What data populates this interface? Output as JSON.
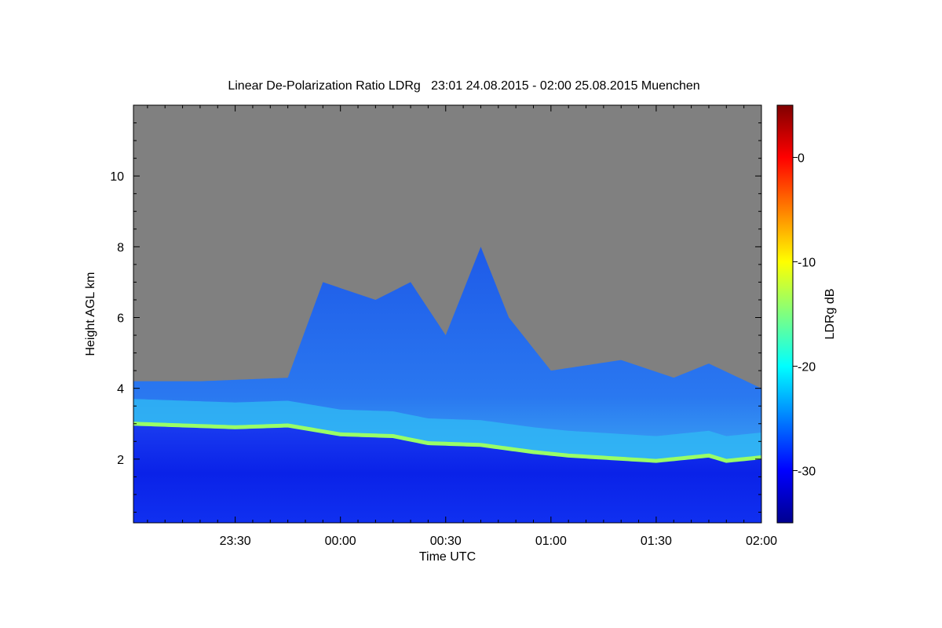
{
  "chart_data": {
    "type": "heatmap",
    "title": "Linear De-Polarization Ratio LDRg   23:01 24.08.2015 - 02:00 25.08.2015 Muenchen",
    "xlabel": "Time UTC",
    "ylabel": "Height AGL km",
    "x_range": [
      "23:01",
      "02:00"
    ],
    "y_range": [
      0.2,
      12.0
    ],
    "x_ticks": [
      "23:30",
      "00:00",
      "00:30",
      "01:00",
      "01:30",
      "02:00"
    ],
    "y_ticks": [
      2,
      4,
      6,
      8,
      10
    ],
    "colorbar": {
      "label": "LDRg dB",
      "range": [
        -35,
        5
      ],
      "ticks": [
        0,
        -10,
        -20,
        -30
      ],
      "colormap": "jet"
    },
    "no_signal_color": "#808080",
    "features": {
      "low_level_ldr_db": -30,
      "melting_layer_ldr_db": -14,
      "ice_cloud_ldr_db": -26,
      "melting_layer_height_km": [
        [
          "23:01",
          3.0
        ],
        [
          "23:30",
          2.9
        ],
        [
          "23:45",
          2.95
        ],
        [
          "00:00",
          2.7
        ],
        [
          "00:15",
          2.65
        ],
        [
          "00:25",
          2.45
        ],
        [
          "00:40",
          2.4
        ],
        [
          "00:55",
          2.2
        ],
        [
          "01:05",
          2.1
        ],
        [
          "01:30",
          1.95
        ],
        [
          "01:45",
          2.1
        ],
        [
          "01:50",
          1.95
        ],
        [
          "02:00",
          2.05
        ]
      ],
      "cloud_top_height_km": [
        [
          "23:01",
          4.2
        ],
        [
          "23:20",
          4.2
        ],
        [
          "23:45",
          4.3
        ],
        [
          "23:55",
          7.0
        ],
        [
          "00:10",
          6.5
        ],
        [
          "00:20",
          7.0
        ],
        [
          "00:30",
          5.5
        ],
        [
          "00:40",
          8.0
        ],
        [
          "00:48",
          6.0
        ],
        [
          "01:00",
          4.5
        ],
        [
          "01:20",
          4.8
        ],
        [
          "01:35",
          4.3
        ],
        [
          "01:45",
          4.7
        ],
        [
          "02:00",
          4.0
        ]
      ]
    }
  }
}
